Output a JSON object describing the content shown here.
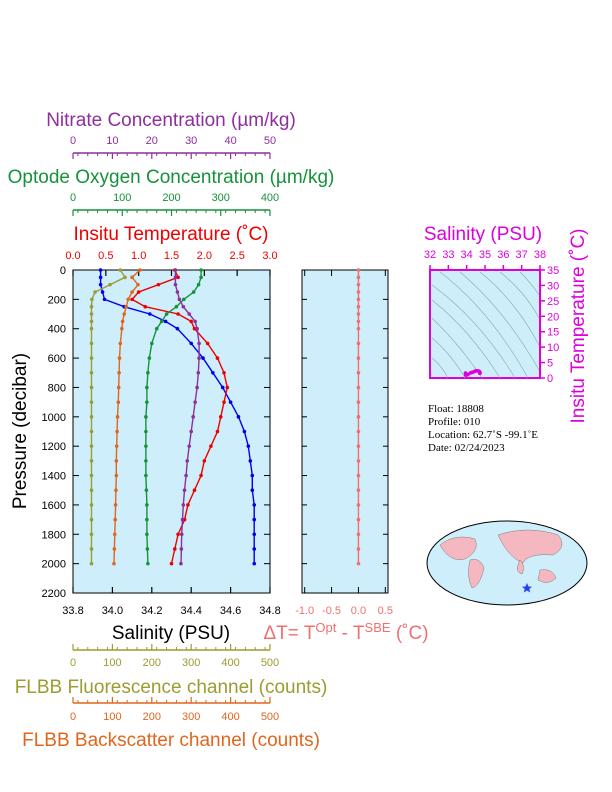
{
  "chart_data": [
    {
      "type": "line",
      "ylabel": "Pressure (decibar)",
      "y": [
        0,
        50,
        100,
        150,
        200,
        250,
        300,
        350,
        400,
        500,
        600,
        700,
        800,
        900,
        1000,
        1100,
        1200,
        1300,
        1400,
        1500,
        1600,
        1700,
        1800,
        1900,
        2000
      ],
      "ylim": [
        0,
        2200
      ],
      "yticks": [
        0,
        200,
        400,
        600,
        800,
        1000,
        1200,
        1400,
        1600,
        1800,
        2000,
        2200
      ],
      "series": [
        {
          "name": "Salinity (PSU)",
          "color": "#0000ee",
          "label_color": "#000000",
          "xlim": [
            33.8,
            34.8
          ],
          "xticks": [
            33.8,
            {
              "value": 34,
              "label": "34.0"
            },
            34.2,
            34.4,
            34.6,
            34.8
          ],
          "values": [
            33.94,
            33.94,
            33.94,
            33.95,
            33.96,
            34.06,
            34.19,
            34.27,
            34.33,
            34.4,
            34.46,
            34.51,
            34.56,
            34.6,
            34.64,
            34.67,
            34.69,
            34.7,
            34.71,
            34.71,
            34.72,
            34.72,
            34.72,
            34.72,
            34.72
          ]
        },
        {
          "name": "Insitu Temperature (˚C)",
          "color": "#ee0000",
          "xlim": [
            0,
            3
          ],
          "xticks": [
            {
              "value": 0,
              "label": "0.0"
            },
            0.5,
            {
              "value": 1,
              "label": "1.0"
            },
            1.5,
            {
              "value": 2,
              "label": "2.0"
            },
            2.5,
            {
              "value": 3,
              "label": "3.0"
            }
          ],
          "values": [
            1.55,
            1.6,
            1.3,
            1.0,
            0.9,
            1.1,
            1.6,
            1.8,
            1.85,
            2.05,
            2.2,
            2.3,
            2.35,
            2.3,
            2.25,
            2.2,
            2.1,
            2.0,
            1.95,
            1.85,
            1.75,
            1.7,
            1.6,
            1.55,
            1.5
          ]
        },
        {
          "name": "Optode Oxygen Concentration (µm/kg)",
          "color": "#16923a",
          "xlim": [
            0,
            400
          ],
          "xticks": [
            0,
            100,
            200,
            300,
            400
          ],
          "values": [
            260,
            260,
            255,
            245,
            225,
            210,
            190,
            180,
            170,
            160,
            155,
            152,
            150,
            150,
            148,
            148,
            148,
            148,
            148,
            149,
            150,
            150,
            150,
            151,
            152
          ]
        },
        {
          "name": "Nitrate Concentration (µm/kg)",
          "color": "#8e2f9e",
          "xlim": [
            0,
            50
          ],
          "xticks": [
            0,
            10,
            20,
            30,
            40,
            50
          ],
          "values": [
            26,
            26,
            26,
            26.5,
            27,
            28,
            29.5,
            31,
            31.5,
            32,
            32,
            31.8,
            31.5,
            31,
            30.5,
            30,
            29.5,
            29,
            28.7,
            28.3,
            28,
            27.8,
            27.6,
            27.5,
            27.4
          ]
        },
        {
          "name": "FLBB Fluorescence channel (counts)",
          "color": "#9c9c30",
          "xlim": [
            0,
            500
          ],
          "xticks": [
            0,
            100,
            200,
            300,
            400,
            500
          ],
          "values": [
            120,
            132,
            94,
            56,
            48,
            47,
            47,
            47,
            47,
            47,
            47,
            47,
            47,
            47,
            47,
            47,
            47,
            47,
            47,
            47,
            47,
            47,
            47,
            47,
            47
          ]
        },
        {
          "name": "FLBB Backscatter channel (counts)",
          "color": "#e0661e",
          "xlim": [
            0,
            500
          ],
          "xticks": [
            0,
            100,
            200,
            300,
            400,
            500
          ],
          "values": [
            170,
            150,
            165,
            150,
            140,
            135,
            130,
            126,
            124,
            120,
            118,
            117,
            116,
            115,
            113,
            112,
            111,
            110,
            110,
            109,
            108,
            107,
            106,
            105,
            104
          ]
        }
      ]
    },
    {
      "type": "line",
      "color": "#f07070",
      "xlabel": [
        "ΔT= T",
        "Opt",
        " - T",
        "SBE",
        " (˚C)"
      ],
      "xlim": [
        -1.05,
        0.55
      ],
      "xticks": [
        {
          "value": -1,
          "label": "-1.0"
        },
        -0.5,
        {
          "value": 0,
          "label": "0.0"
        },
        0.5
      ],
      "values": [
        0,
        0,
        0,
        0,
        0,
        0,
        0,
        0,
        0,
        0,
        0,
        0,
        0,
        0,
        0,
        0,
        0,
        0,
        0,
        0,
        0,
        0,
        0,
        0,
        0
      ]
    },
    {
      "type": "scatter",
      "color": "#dd00dd",
      "xlabel": "Salinity (PSU)",
      "ylabel": "Insitu Temperature (˚C)",
      "xlim": [
        32,
        38
      ],
      "xticks": [
        32,
        33,
        34,
        35,
        36,
        37,
        38
      ],
      "ylim": [
        0,
        35
      ],
      "yticks": [
        0,
        5,
        10,
        15,
        20,
        25,
        30,
        35
      ]
    }
  ],
  "info": [
    "Float:  18808",
    "Profile:  010",
    "Location:  62.7˚S  -99.1˚E",
    "Date:  02/24/2023"
  ]
}
